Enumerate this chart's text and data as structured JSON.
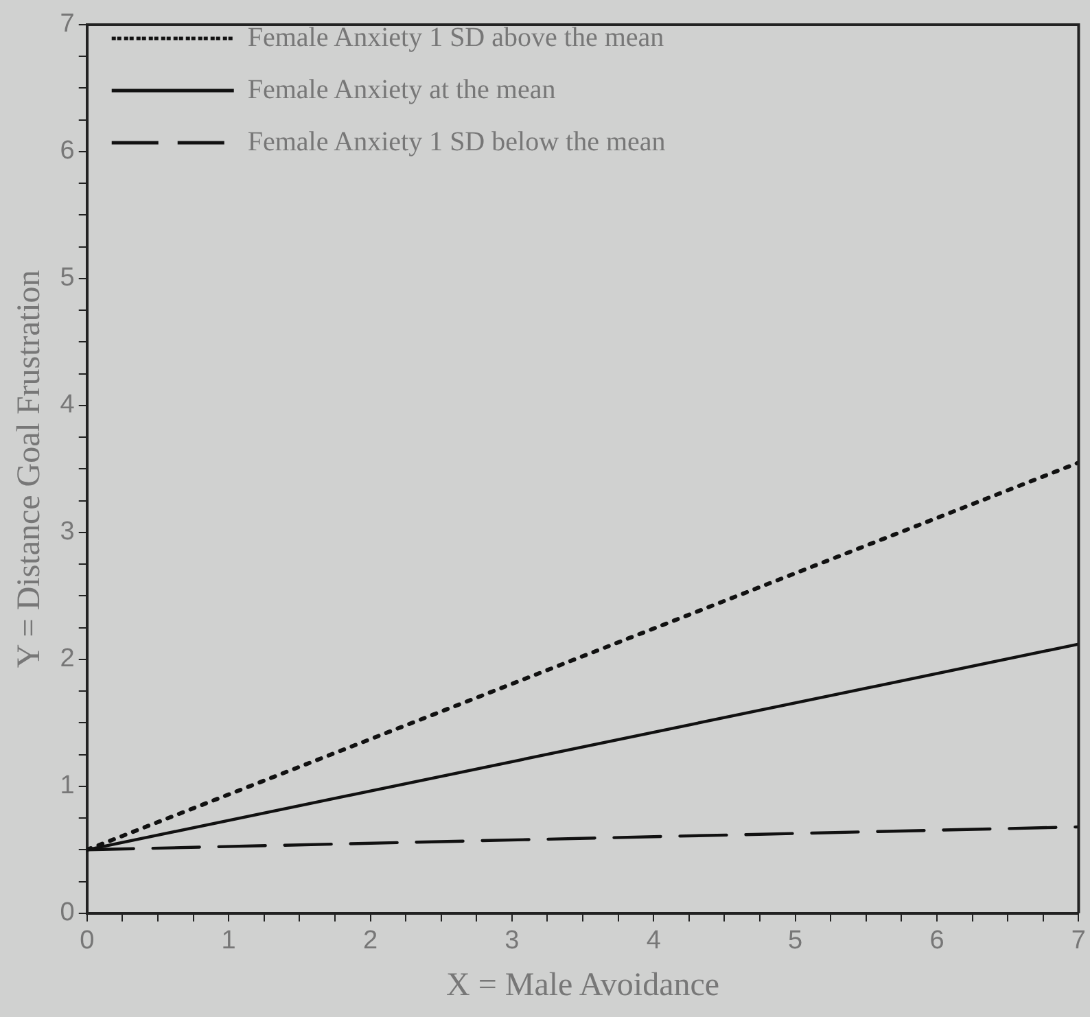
{
  "chart_data": {
    "type": "line",
    "xlabel": "X = Male Avoidance",
    "ylabel": "Y = Distance Goal Frustration",
    "x": [
      0,
      7
    ],
    "xlim": [
      0,
      7
    ],
    "ylim": [
      0,
      7
    ],
    "xticks": [
      0,
      {
        "value": 0.25,
        "label": null
      },
      {
        "value": 0.5,
        "label": null
      },
      {
        "value": 0.75,
        "label": null
      },
      1,
      {
        "value": 1.25,
        "label": null
      },
      {
        "value": 1.5,
        "label": null
      },
      {
        "value": 1.75,
        "label": null
      },
      2,
      {
        "value": 2.25,
        "label": null
      },
      {
        "value": 2.5,
        "label": null
      },
      {
        "value": 2.75,
        "label": null
      },
      3,
      {
        "value": 3.25,
        "label": null
      },
      {
        "value": 3.5,
        "label": null
      },
      {
        "value": 3.75,
        "label": null
      },
      4,
      {
        "value": 4.25,
        "label": null
      },
      {
        "value": 4.5,
        "label": null
      },
      {
        "value": 4.75,
        "label": null
      },
      5,
      {
        "value": 5.25,
        "label": null
      },
      {
        "value": 5.5,
        "label": null
      },
      {
        "value": 5.75,
        "label": null
      },
      6,
      {
        "value": 6.25,
        "label": null
      },
      {
        "value": 6.5,
        "label": null
      },
      {
        "value": 6.75,
        "label": null
      },
      7
    ],
    "yticks": [
      0,
      {
        "value": 0.25,
        "label": null
      },
      {
        "value": 0.5,
        "label": null
      },
      {
        "value": 0.75,
        "label": null
      },
      1,
      {
        "value": 1.25,
        "label": null
      },
      {
        "value": 1.5,
        "label": null
      },
      {
        "value": 1.75,
        "label": null
      },
      2,
      {
        "value": 2.25,
        "label": null
      },
      {
        "value": 2.5,
        "label": null
      },
      {
        "value": 2.75,
        "label": null
      },
      3,
      {
        "value": 3.25,
        "label": null
      },
      {
        "value": 3.5,
        "label": null
      },
      {
        "value": 3.75,
        "label": null
      },
      4,
      {
        "value": 4.25,
        "label": null
      },
      {
        "value": 4.5,
        "label": null
      },
      {
        "value": 4.75,
        "label": null
      },
      5,
      {
        "value": 5.25,
        "label": null
      },
      {
        "value": 5.5,
        "label": null
      },
      {
        "value": 5.75,
        "label": null
      },
      6,
      {
        "value": 6.25,
        "label": null
      },
      {
        "value": 6.5,
        "label": null
      },
      {
        "value": 6.75,
        "label": null
      },
      7
    ],
    "grid": false,
    "legend": "top left",
    "marker": "none",
    "series": [
      {
        "name": "Female Anxiety 1 SD above the mean",
        "color": "#111111",
        "line_style": "dotted",
        "values": [
          0.5,
          3.55
        ]
      },
      {
        "name": "Female Anxiety at the mean",
        "color": "#111111",
        "line_style": "solid",
        "values": [
          0.5,
          2.12
        ]
      },
      {
        "name": "Female Anxiety 1 SD below the mean",
        "color": "#111111",
        "line_style": "dashed",
        "values": [
          0.5,
          0.68
        ]
      }
    ]
  }
}
